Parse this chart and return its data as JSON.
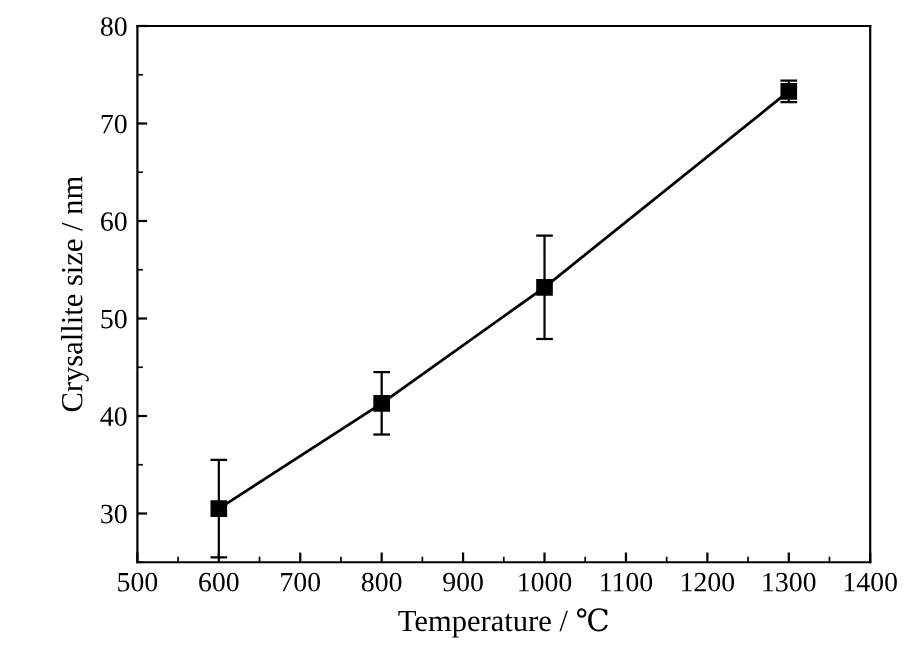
{
  "chart_data": {
    "type": "line",
    "xlabel": "Temperature / ℃",
    "ylabel": "Crysallite size / nm",
    "x": [
      600,
      800,
      1000,
      1300
    ],
    "series": [
      {
        "color": "#000000",
        "values": [
          30.5,
          41.3,
          53.2,
          73.3
        ],
        "errors": [
          5,
          3.2,
          5.3,
          1.1
        ]
      }
    ],
    "xlim": [
      500,
      1400
    ],
    "xticks": [
      500,
      600,
      700,
      800,
      900,
      1000,
      1100,
      1200,
      1300,
      1400
    ],
    "ylim": [
      25,
      80
    ],
    "yticks": [
      30,
      40,
      50,
      60,
      70,
      80
    ],
    "marker": "square",
    "line_style": "solid",
    "grid": false,
    "legend": false
  }
}
